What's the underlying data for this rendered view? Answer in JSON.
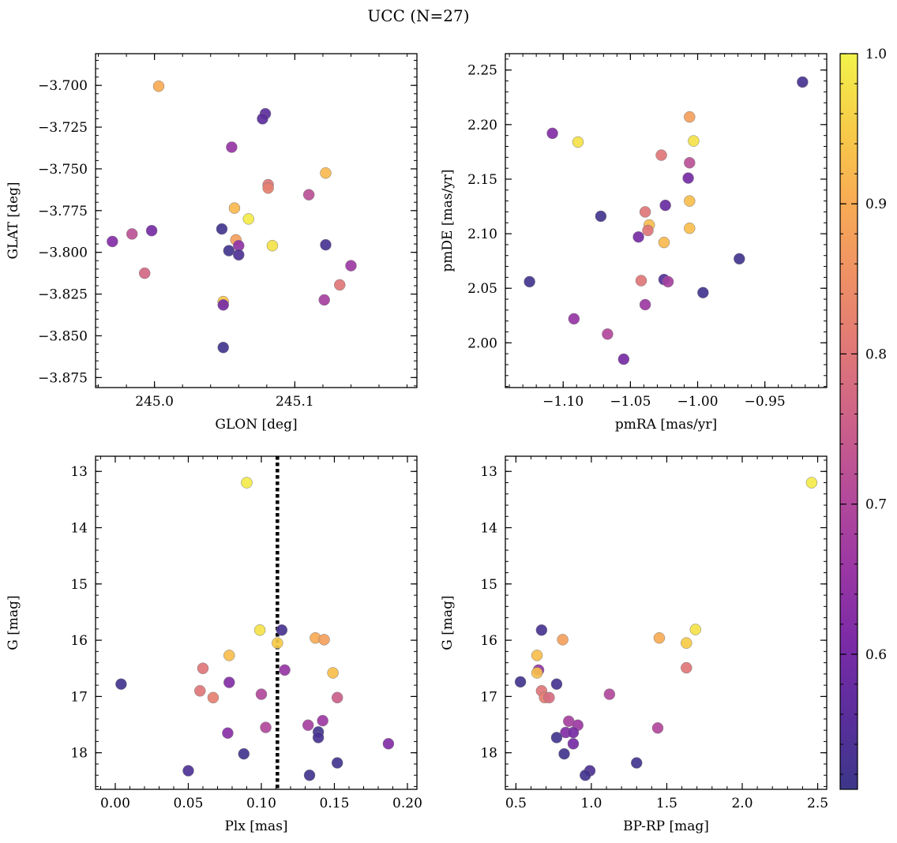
{
  "figure": {
    "title": "UCC (N=27)"
  },
  "colorbar": {
    "cmap": "plasma",
    "vmin": 0.51,
    "vmax": 1.0,
    "ticks": [
      0.6,
      0.7,
      0.8,
      0.9,
      1.0
    ],
    "tick_labels": [
      "0.6",
      "0.7",
      "0.8",
      "0.9",
      "1.0"
    ]
  },
  "chart_data": [
    {
      "type": "scatter",
      "xlabel": "GLON [deg]",
      "ylabel": "GLAT [deg]",
      "xlim": [
        244.958,
        245.187
      ],
      "ylim": [
        -3.881,
        -3.681
      ],
      "xticks": [
        245.0,
        245.1
      ],
      "xtick_labels": [
        "245.0",
        "245.1"
      ],
      "yticks": [
        -3.875,
        -3.85,
        -3.825,
        -3.8,
        -3.775,
        -3.75,
        -3.725,
        -3.7
      ],
      "ytick_labels": [
        "−3.875",
        "−3.850",
        "−3.825",
        "−3.800",
        "−3.775",
        "−3.750",
        "−3.725",
        "−3.700"
      ],
      "points": [
        {
          "x": 245.003,
          "y": -3.7005,
          "c": 0.9
        },
        {
          "x": 245.079,
          "y": -3.717,
          "c": 0.56
        },
        {
          "x": 245.077,
          "y": -3.72,
          "c": 0.56
        },
        {
          "x": 245.055,
          "y": -3.737,
          "c": 0.65
        },
        {
          "x": 245.122,
          "y": -3.7525,
          "c": 0.92
        },
        {
          "x": 245.081,
          "y": -3.7595,
          "c": 0.8
        },
        {
          "x": 245.081,
          "y": -3.7615,
          "c": 0.82
        },
        {
          "x": 245.11,
          "y": -3.7655,
          "c": 0.72
        },
        {
          "x": 245.057,
          "y": -3.7735,
          "c": 0.92
        },
        {
          "x": 245.067,
          "y": -3.78,
          "c": 0.99
        },
        {
          "x": 244.97,
          "y": -3.7935,
          "c": 0.62
        },
        {
          "x": 244.984,
          "y": -3.789,
          "c": 0.72
        },
        {
          "x": 244.998,
          "y": -3.787,
          "c": 0.6
        },
        {
          "x": 245.048,
          "y": -3.786,
          "c": 0.52
        },
        {
          "x": 245.058,
          "y": -3.7925,
          "c": 0.88
        },
        {
          "x": 245.06,
          "y": -3.796,
          "c": 0.64
        },
        {
          "x": 245.053,
          "y": -3.799,
          "c": 0.52
        },
        {
          "x": 245.06,
          "y": -3.8015,
          "c": 0.54
        },
        {
          "x": 245.084,
          "y": -3.796,
          "c": 0.98
        },
        {
          "x": 245.122,
          "y": -3.7955,
          "c": 0.53
        },
        {
          "x": 245.14,
          "y": -3.808,
          "c": 0.66
        },
        {
          "x": 244.993,
          "y": -3.8125,
          "c": 0.77
        },
        {
          "x": 245.132,
          "y": -3.8195,
          "c": 0.8
        },
        {
          "x": 245.121,
          "y": -3.8285,
          "c": 0.68
        },
        {
          "x": 245.049,
          "y": -3.8295,
          "c": 0.94
        },
        {
          "x": 245.049,
          "y": -3.8315,
          "c": 0.6
        },
        {
          "x": 245.049,
          "y": -3.857,
          "c": 0.52
        }
      ]
    },
    {
      "type": "scatter",
      "xlabel": "pmRA [mas/yr]",
      "ylabel": "pmDE [mas/yr]",
      "xlim": [
        -1.143,
        -0.904
      ],
      "ylim": [
        1.959,
        2.265
      ],
      "xticks": [
        -1.1,
        -1.05,
        -1.0,
        -0.95
      ],
      "xtick_labels": [
        "−1.10",
        "−1.05",
        "−1.00",
        "−0.95"
      ],
      "yticks": [
        2.0,
        2.05,
        2.1,
        2.15,
        2.2,
        2.25
      ],
      "ytick_labels": [
        "2.00",
        "2.05",
        "2.10",
        "2.15",
        "2.20",
        "2.25"
      ],
      "points": [
        {
          "x": -0.922,
          "y": 2.239,
          "c": 0.53
        },
        {
          "x": -1.108,
          "y": 2.192,
          "c": 0.62
        },
        {
          "x": -1.089,
          "y": 2.184,
          "c": 0.98
        },
        {
          "x": -1.006,
          "y": 2.207,
          "c": 0.88
        },
        {
          "x": -1.003,
          "y": 2.185,
          "c": 0.98
        },
        {
          "x": -1.027,
          "y": 2.172,
          "c": 0.8
        },
        {
          "x": -1.006,
          "y": 2.165,
          "c": 0.72
        },
        {
          "x": -1.007,
          "y": 2.151,
          "c": 0.6
        },
        {
          "x": -1.006,
          "y": 2.13,
          "c": 0.93
        },
        {
          "x": -1.024,
          "y": 2.126,
          "c": 0.58
        },
        {
          "x": -1.039,
          "y": 2.12,
          "c": 0.8
        },
        {
          "x": -1.072,
          "y": 2.116,
          "c": 0.52
        },
        {
          "x": -1.036,
          "y": 2.108,
          "c": 0.93
        },
        {
          "x": -1.037,
          "y": 2.103,
          "c": 0.8
        },
        {
          "x": -1.006,
          "y": 2.105,
          "c": 0.93
        },
        {
          "x": -1.044,
          "y": 2.097,
          "c": 0.6
        },
        {
          "x": -1.025,
          "y": 2.092,
          "c": 0.92
        },
        {
          "x": -0.969,
          "y": 2.077,
          "c": 0.52
        },
        {
          "x": -1.125,
          "y": 2.056,
          "c": 0.52
        },
        {
          "x": -1.025,
          "y": 2.058,
          "c": 0.55
        },
        {
          "x": -1.022,
          "y": 2.056,
          "c": 0.68
        },
        {
          "x": -1.042,
          "y": 2.057,
          "c": 0.8
        },
        {
          "x": -0.996,
          "y": 2.046,
          "c": 0.52
        },
        {
          "x": -1.039,
          "y": 2.035,
          "c": 0.66
        },
        {
          "x": -1.092,
          "y": 2.022,
          "c": 0.65
        },
        {
          "x": -1.067,
          "y": 2.008,
          "c": 0.7
        },
        {
          "x": -1.055,
          "y": 1.985,
          "c": 0.6
        }
      ]
    },
    {
      "type": "scatter",
      "xlabel": "Plx [mas]",
      "ylabel": "G [mag]",
      "xlim": [
        -0.0135,
        0.2065
      ],
      "ylim": [
        18.65,
        12.73
      ],
      "xticks": [
        0.0,
        0.05,
        0.1,
        0.15,
        0.2
      ],
      "xtick_labels": [
        "0.00",
        "0.05",
        "0.10",
        "0.15",
        "0.20"
      ],
      "yticks": [
        13,
        14,
        15,
        16,
        17,
        18
      ],
      "ytick_labels": [
        "13",
        "14",
        "15",
        "16",
        "17",
        "18"
      ],
      "vline": 0.111,
      "points": [
        {
          "x": 0.09,
          "y": 13.2,
          "c": 0.99
        },
        {
          "x": 0.099,
          "y": 15.82,
          "c": 0.98
        },
        {
          "x": 0.114,
          "y": 15.82,
          "c": 0.53
        },
        {
          "x": 0.137,
          "y": 15.96,
          "c": 0.9
        },
        {
          "x": 0.143,
          "y": 15.99,
          "c": 0.88
        },
        {
          "x": 0.111,
          "y": 16.05,
          "c": 0.95
        },
        {
          "x": 0.078,
          "y": 16.27,
          "c": 0.93
        },
        {
          "x": 0.06,
          "y": 16.5,
          "c": 0.8
        },
        {
          "x": 0.116,
          "y": 16.53,
          "c": 0.65
        },
        {
          "x": 0.149,
          "y": 16.58,
          "c": 0.93
        },
        {
          "x": 0.078,
          "y": 16.75,
          "c": 0.62
        },
        {
          "x": 0.004,
          "y": 16.78,
          "c": 0.52
        },
        {
          "x": 0.058,
          "y": 16.9,
          "c": 0.8
        },
        {
          "x": 0.1,
          "y": 16.96,
          "c": 0.7
        },
        {
          "x": 0.067,
          "y": 17.02,
          "c": 0.82
        },
        {
          "x": 0.152,
          "y": 17.02,
          "c": 0.75
        },
        {
          "x": 0.142,
          "y": 17.43,
          "c": 0.66
        },
        {
          "x": 0.132,
          "y": 17.51,
          "c": 0.68
        },
        {
          "x": 0.103,
          "y": 17.55,
          "c": 0.7
        },
        {
          "x": 0.139,
          "y": 17.63,
          "c": 0.52
        },
        {
          "x": 0.077,
          "y": 17.65,
          "c": 0.63
        },
        {
          "x": 0.139,
          "y": 17.73,
          "c": 0.53
        },
        {
          "x": 0.187,
          "y": 17.84,
          "c": 0.62
        },
        {
          "x": 0.088,
          "y": 18.02,
          "c": 0.52
        },
        {
          "x": 0.152,
          "y": 18.18,
          "c": 0.52
        },
        {
          "x": 0.05,
          "y": 18.32,
          "c": 0.54
        },
        {
          "x": 0.133,
          "y": 18.4,
          "c": 0.52
        }
      ]
    },
    {
      "type": "scatter",
      "xlabel": "BP-RP [mag]",
      "ylabel": "G [mag]",
      "xlim": [
        0.43,
        2.56
      ],
      "ylim": [
        18.65,
        12.73
      ],
      "xticks": [
        0.5,
        1.0,
        1.5,
        2.0,
        2.5
      ],
      "xtick_labels": [
        "0.5",
        "1.0",
        "1.5",
        "2.0",
        "2.5"
      ],
      "yticks": [
        13,
        14,
        15,
        16,
        17,
        18
      ],
      "ytick_labels": [
        "13",
        "14",
        "15",
        "16",
        "17",
        "18"
      ],
      "points": [
        {
          "x": 2.46,
          "y": 13.2,
          "c": 0.99
        },
        {
          "x": 0.67,
          "y": 15.82,
          "c": 0.53
        },
        {
          "x": 1.69,
          "y": 15.81,
          "c": 0.98
        },
        {
          "x": 1.45,
          "y": 15.96,
          "c": 0.9
        },
        {
          "x": 0.81,
          "y": 15.99,
          "c": 0.88
        },
        {
          "x": 1.63,
          "y": 16.05,
          "c": 0.95
        },
        {
          "x": 0.64,
          "y": 16.27,
          "c": 0.93
        },
        {
          "x": 1.63,
          "y": 16.49,
          "c": 0.8
        },
        {
          "x": 0.65,
          "y": 16.53,
          "c": 0.65
        },
        {
          "x": 0.64,
          "y": 16.58,
          "c": 0.93
        },
        {
          "x": 0.53,
          "y": 16.74,
          "c": 0.52
        },
        {
          "x": 0.77,
          "y": 16.78,
          "c": 0.53
        },
        {
          "x": 0.67,
          "y": 16.9,
          "c": 0.8
        },
        {
          "x": 1.12,
          "y": 16.96,
          "c": 0.7
        },
        {
          "x": 0.69,
          "y": 17.02,
          "c": 0.82
        },
        {
          "x": 0.72,
          "y": 17.02,
          "c": 0.78
        },
        {
          "x": 0.85,
          "y": 17.44,
          "c": 0.68
        },
        {
          "x": 0.91,
          "y": 17.51,
          "c": 0.66
        },
        {
          "x": 1.44,
          "y": 17.56,
          "c": 0.7
        },
        {
          "x": 0.83,
          "y": 17.64,
          "c": 0.62
        },
        {
          "x": 0.88,
          "y": 17.64,
          "c": 0.6
        },
        {
          "x": 0.77,
          "y": 17.73,
          "c": 0.52
        },
        {
          "x": 0.88,
          "y": 17.84,
          "c": 0.6
        },
        {
          "x": 0.82,
          "y": 18.02,
          "c": 0.52
        },
        {
          "x": 1.3,
          "y": 18.18,
          "c": 0.52
        },
        {
          "x": 0.99,
          "y": 18.32,
          "c": 0.54
        },
        {
          "x": 0.96,
          "y": 18.4,
          "c": 0.52
        }
      ]
    }
  ]
}
